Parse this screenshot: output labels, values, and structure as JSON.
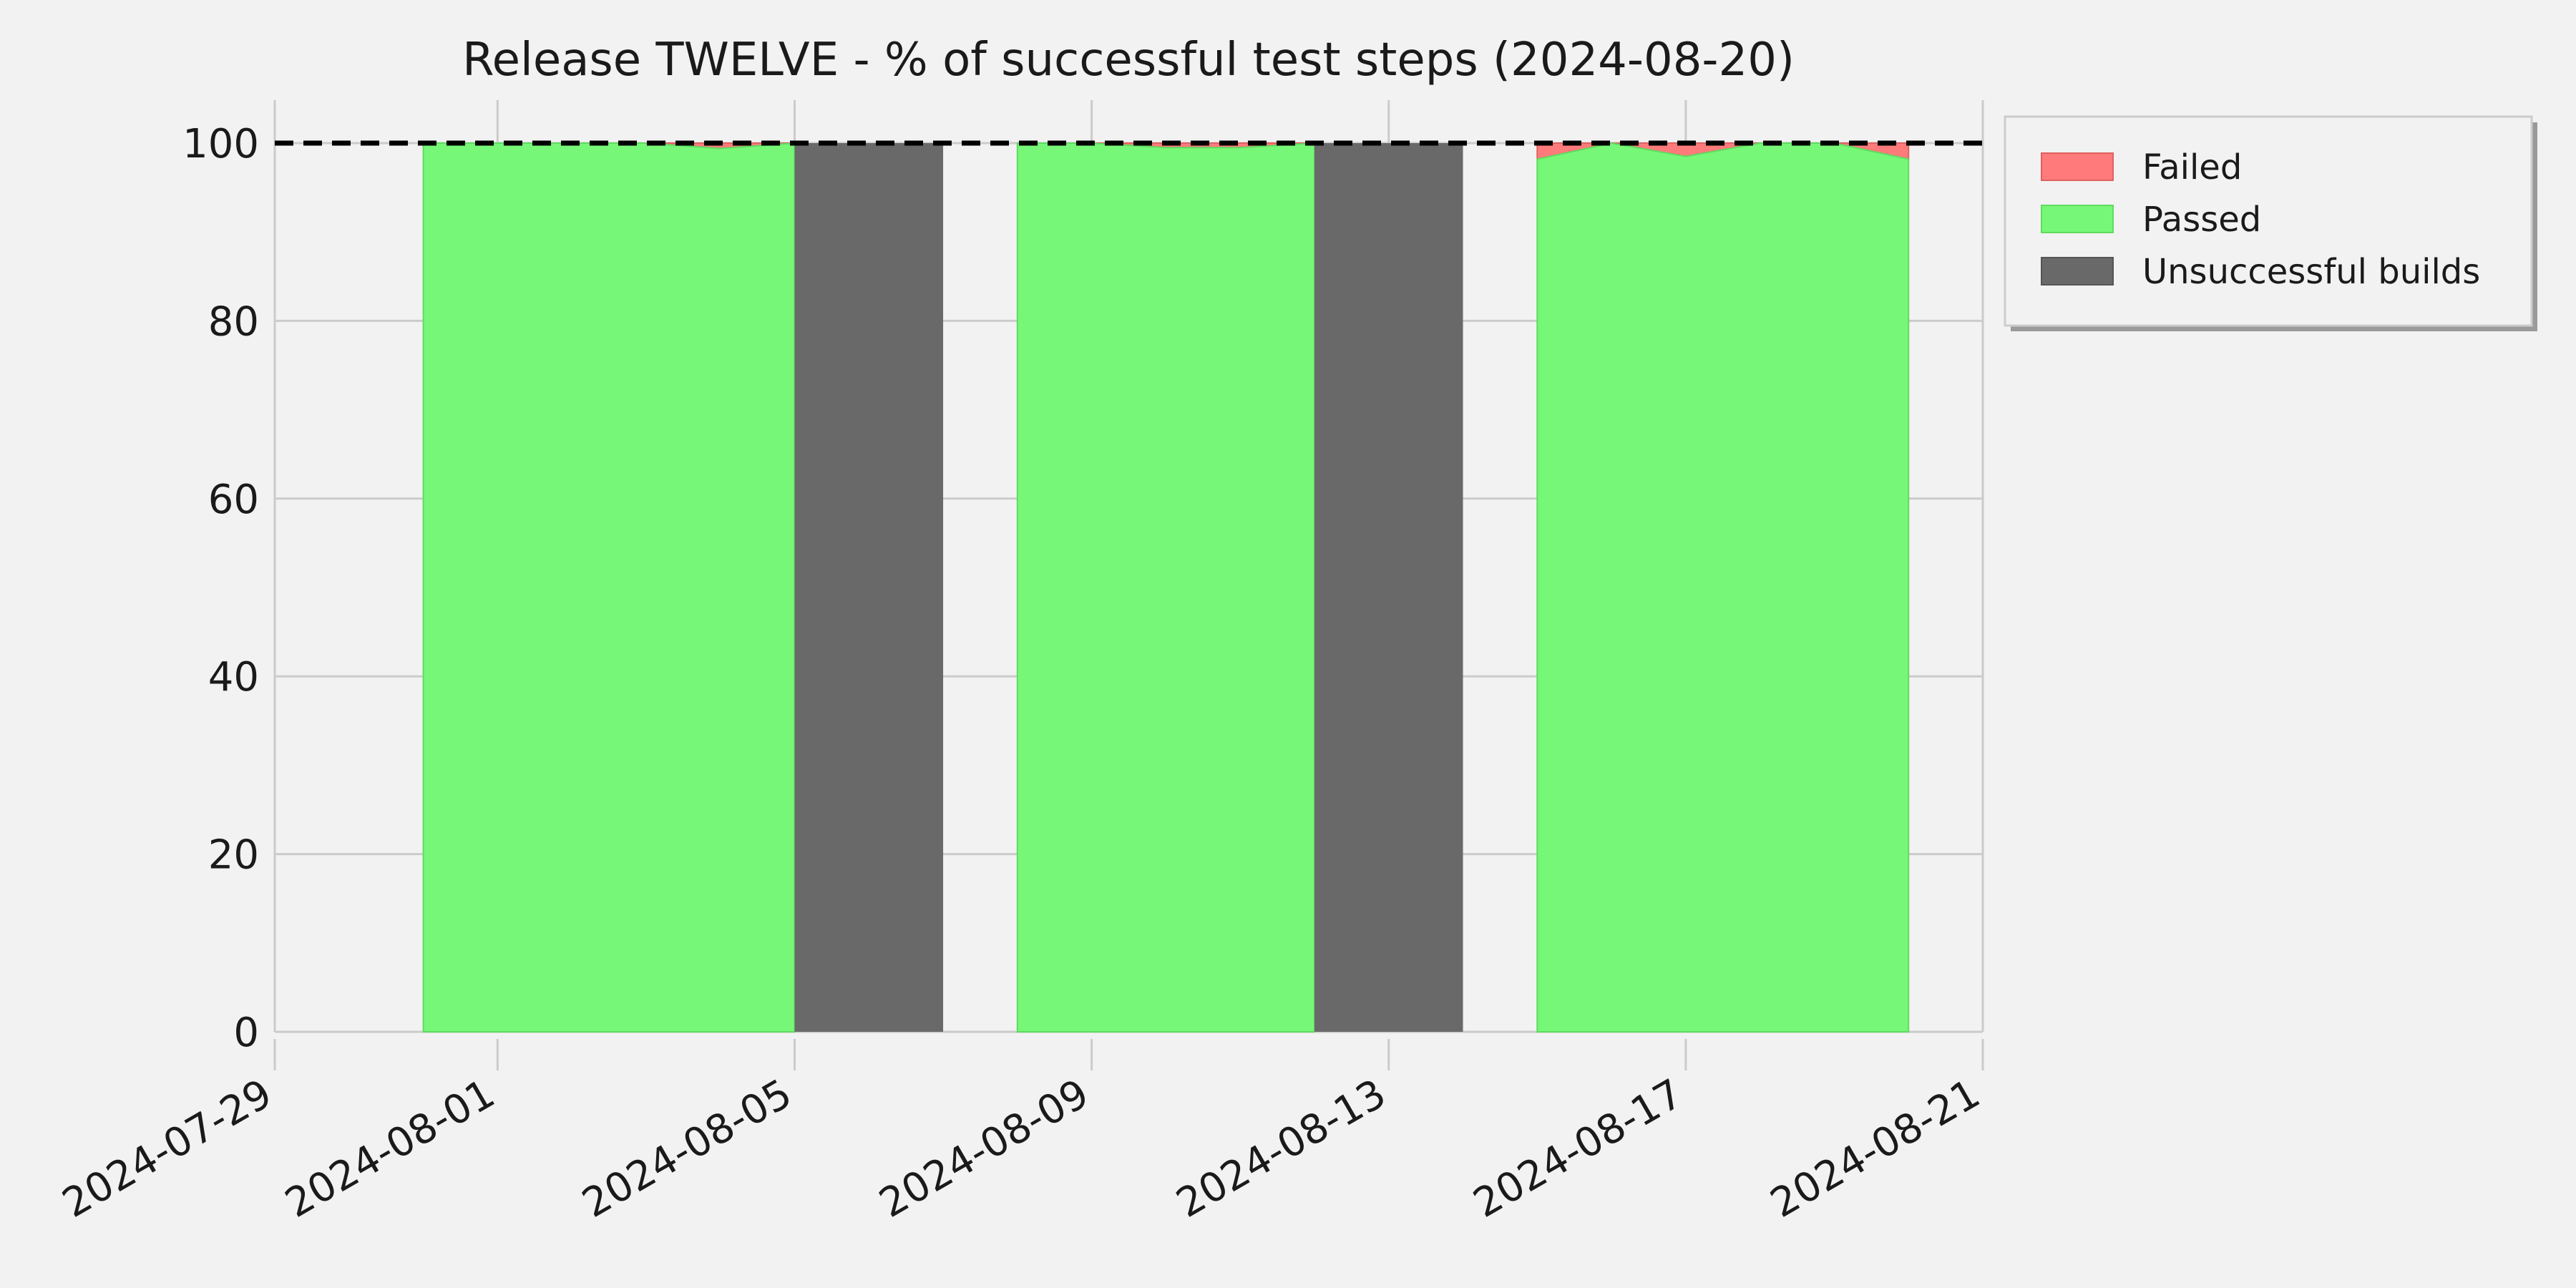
{
  "chart_data": {
    "type": "area",
    "title": "Release TWELVE - % of successful test steps (2024-08-20)",
    "xlabel": "",
    "ylabel": "",
    "x_range": [
      "2024-07-29",
      "2024-08-21"
    ],
    "ylim": [
      0,
      100
    ],
    "x_ticks": [
      "2024-07-29",
      "2024-08-01",
      "2024-08-05",
      "2024-08-09",
      "2024-08-13",
      "2024-08-17",
      "2024-08-21"
    ],
    "y_ticks": [
      0,
      20,
      40,
      60,
      80,
      100
    ],
    "grid": true,
    "legend_position": "upper-right-outside",
    "reference_line": {
      "y": 100,
      "style": "dashed",
      "color": "#000000"
    },
    "dates": [
      "2024-07-31",
      "2024-08-01",
      "2024-08-02",
      "2024-08-03",
      "2024-08-04",
      "2024-08-05",
      "2024-08-06",
      "2024-08-07",
      "2024-08-08",
      "2024-08-09",
      "2024-08-10",
      "2024-08-11",
      "2024-08-12",
      "2024-08-13",
      "2024-08-14",
      "2024-08-15",
      "2024-08-16",
      "2024-08-17",
      "2024-08-18",
      "2024-08-19",
      "2024-08-20"
    ],
    "series": [
      {
        "name": "Failed",
        "color": "#ff7b7b",
        "values": [
          0,
          0,
          0,
          0,
          0.6,
          0,
          null,
          null,
          0,
          0,
          0.5,
          0.5,
          0,
          null,
          null,
          1.8,
          0,
          1.5,
          0,
          0,
          1.8
        ]
      },
      {
        "name": "Passed",
        "color": "#77f777",
        "values": [
          100,
          100,
          100,
          100,
          99.4,
          100,
          null,
          null,
          100,
          100,
          99.5,
          99.5,
          100,
          null,
          null,
          98.2,
          100,
          98.5,
          100,
          100,
          98.2
        ]
      },
      {
        "name": "Unsuccessful builds",
        "color": "#696969",
        "spans": [
          [
            "2024-08-05",
            "2024-08-07"
          ],
          [
            "2024-08-12",
            "2024-08-14"
          ]
        ]
      }
    ]
  }
}
